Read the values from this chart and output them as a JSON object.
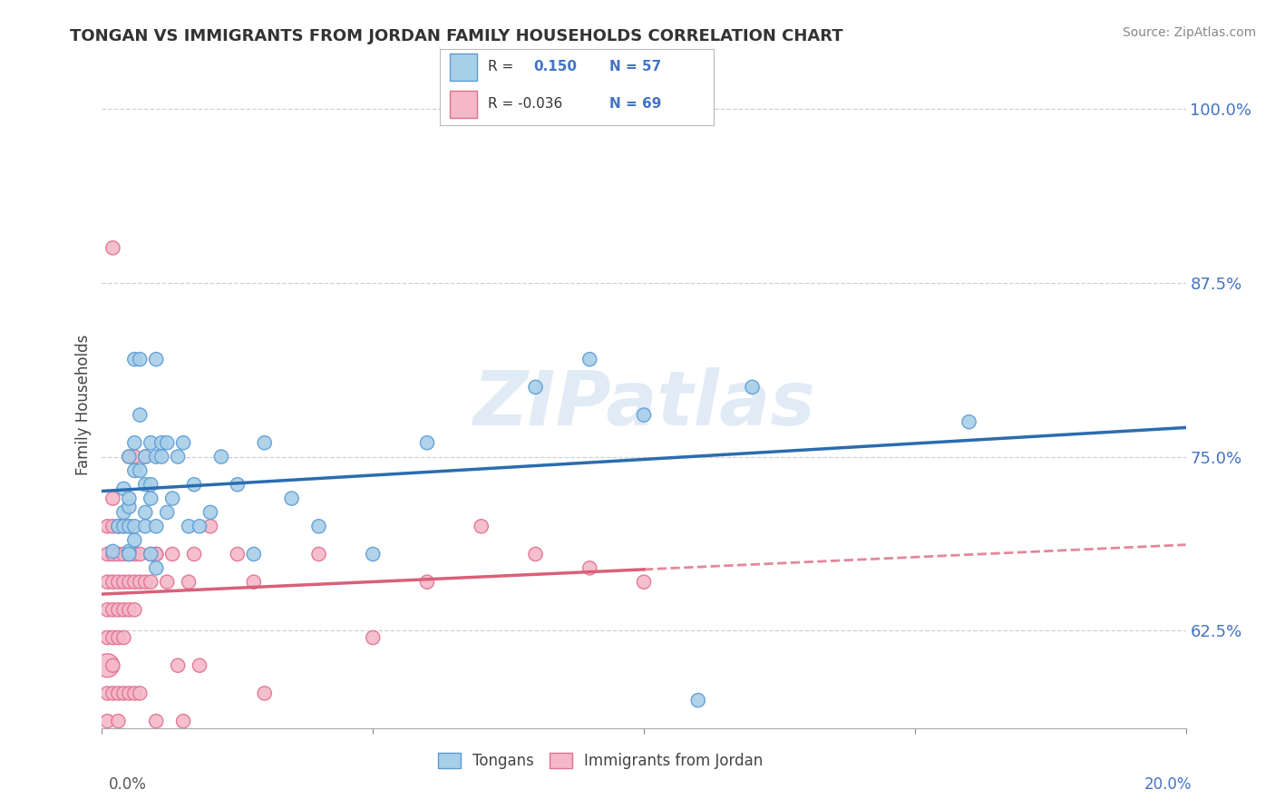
{
  "title": "TONGAN VS IMMIGRANTS FROM JORDAN FAMILY HOUSEHOLDS CORRELATION CHART",
  "source_text": "Source: ZipAtlas.com",
  "ylabel": "Family Households",
  "ytick_labels": [
    "62.5%",
    "75.0%",
    "87.5%",
    "100.0%"
  ],
  "ytick_values": [
    0.625,
    0.75,
    0.875,
    1.0
  ],
  "xlim": [
    0.0,
    0.2
  ],
  "ylim": [
    0.555,
    1.02
  ],
  "watermark": "ZIPatlas",
  "blue_color": "#a8cfe8",
  "pink_color": "#f4b8c8",
  "blue_edge_color": "#5b9bd5",
  "pink_edge_color": "#e07090",
  "blue_line_color": "#2b6cb0",
  "pink_line_color": "#d9607a",
  "background_color": "#ffffff",
  "grid_color": "#d0d0d0",
  "tongans_label": "Tongans",
  "jordan_label": "Immigrants from Jordan",
  "blue_scatter": [
    [
      0.002,
      0.682
    ],
    [
      0.003,
      0.7
    ],
    [
      0.004,
      0.7
    ],
    [
      0.004,
      0.727
    ],
    [
      0.004,
      0.71
    ],
    [
      0.005,
      0.682
    ],
    [
      0.005,
      0.714
    ],
    [
      0.005,
      0.75
    ],
    [
      0.005,
      0.7
    ],
    [
      0.005,
      0.72
    ],
    [
      0.005,
      0.68
    ],
    [
      0.006,
      0.69
    ],
    [
      0.006,
      0.76
    ],
    [
      0.006,
      0.7
    ],
    [
      0.006,
      0.82
    ],
    [
      0.006,
      0.74
    ],
    [
      0.007,
      0.82
    ],
    [
      0.007,
      0.74
    ],
    [
      0.007,
      0.78
    ],
    [
      0.008,
      0.73
    ],
    [
      0.008,
      0.7
    ],
    [
      0.008,
      0.71
    ],
    [
      0.008,
      0.75
    ],
    [
      0.009,
      0.76
    ],
    [
      0.009,
      0.68
    ],
    [
      0.009,
      0.73
    ],
    [
      0.009,
      0.72
    ],
    [
      0.01,
      0.75
    ],
    [
      0.01,
      0.82
    ],
    [
      0.01,
      0.7
    ],
    [
      0.01,
      0.67
    ],
    [
      0.011,
      0.76
    ],
    [
      0.011,
      0.75
    ],
    [
      0.012,
      0.76
    ],
    [
      0.012,
      0.71
    ],
    [
      0.013,
      0.72
    ],
    [
      0.014,
      0.75
    ],
    [
      0.015,
      0.76
    ],
    [
      0.016,
      0.7
    ],
    [
      0.017,
      0.73
    ],
    [
      0.018,
      0.7
    ],
    [
      0.02,
      0.71
    ],
    [
      0.022,
      0.75
    ],
    [
      0.025,
      0.73
    ],
    [
      0.028,
      0.68
    ],
    [
      0.03,
      0.76
    ],
    [
      0.035,
      0.72
    ],
    [
      0.04,
      0.7
    ],
    [
      0.05,
      0.68
    ],
    [
      0.06,
      0.76
    ],
    [
      0.08,
      0.8
    ],
    [
      0.09,
      0.82
    ],
    [
      0.1,
      0.78
    ],
    [
      0.11,
      0.575
    ],
    [
      0.12,
      0.8
    ],
    [
      0.16,
      0.775
    ]
  ],
  "pink_scatter": [
    [
      0.001,
      0.6
    ],
    [
      0.001,
      0.62
    ],
    [
      0.001,
      0.64
    ],
    [
      0.001,
      0.66
    ],
    [
      0.001,
      0.68
    ],
    [
      0.001,
      0.7
    ],
    [
      0.001,
      0.58
    ],
    [
      0.001,
      0.56
    ],
    [
      0.002,
      0.6
    ],
    [
      0.002,
      0.62
    ],
    [
      0.002,
      0.64
    ],
    [
      0.002,
      0.66
    ],
    [
      0.002,
      0.68
    ],
    [
      0.002,
      0.7
    ],
    [
      0.002,
      0.72
    ],
    [
      0.002,
      0.58
    ],
    [
      0.002,
      0.9
    ],
    [
      0.003,
      0.62
    ],
    [
      0.003,
      0.64
    ],
    [
      0.003,
      0.66
    ],
    [
      0.003,
      0.68
    ],
    [
      0.003,
      0.7
    ],
    [
      0.003,
      0.58
    ],
    [
      0.003,
      0.56
    ],
    [
      0.004,
      0.62
    ],
    [
      0.004,
      0.64
    ],
    [
      0.004,
      0.66
    ],
    [
      0.004,
      0.68
    ],
    [
      0.004,
      0.7
    ],
    [
      0.004,
      0.58
    ],
    [
      0.005,
      0.64
    ],
    [
      0.005,
      0.66
    ],
    [
      0.005,
      0.68
    ],
    [
      0.005,
      0.7
    ],
    [
      0.005,
      0.58
    ],
    [
      0.005,
      0.75
    ],
    [
      0.006,
      0.64
    ],
    [
      0.006,
      0.66
    ],
    [
      0.006,
      0.68
    ],
    [
      0.006,
      0.58
    ],
    [
      0.006,
      0.75
    ],
    [
      0.007,
      0.66
    ],
    [
      0.007,
      0.68
    ],
    [
      0.007,
      0.58
    ],
    [
      0.008,
      0.66
    ],
    [
      0.008,
      0.75
    ],
    [
      0.009,
      0.66
    ],
    [
      0.009,
      0.68
    ],
    [
      0.01,
      0.68
    ],
    [
      0.01,
      0.56
    ],
    [
      0.01,
      0.68
    ],
    [
      0.012,
      0.66
    ],
    [
      0.013,
      0.68
    ],
    [
      0.014,
      0.6
    ],
    [
      0.015,
      0.56
    ],
    [
      0.016,
      0.66
    ],
    [
      0.017,
      0.68
    ],
    [
      0.018,
      0.6
    ],
    [
      0.02,
      0.7
    ],
    [
      0.025,
      0.68
    ],
    [
      0.028,
      0.66
    ],
    [
      0.03,
      0.58
    ],
    [
      0.04,
      0.68
    ],
    [
      0.05,
      0.62
    ],
    [
      0.06,
      0.66
    ],
    [
      0.07,
      0.7
    ],
    [
      0.08,
      0.68
    ],
    [
      0.09,
      0.67
    ],
    [
      0.1,
      0.66
    ]
  ],
  "pink_large_indices": [
    0
  ],
  "pink_large_size": 350,
  "default_size": 120
}
